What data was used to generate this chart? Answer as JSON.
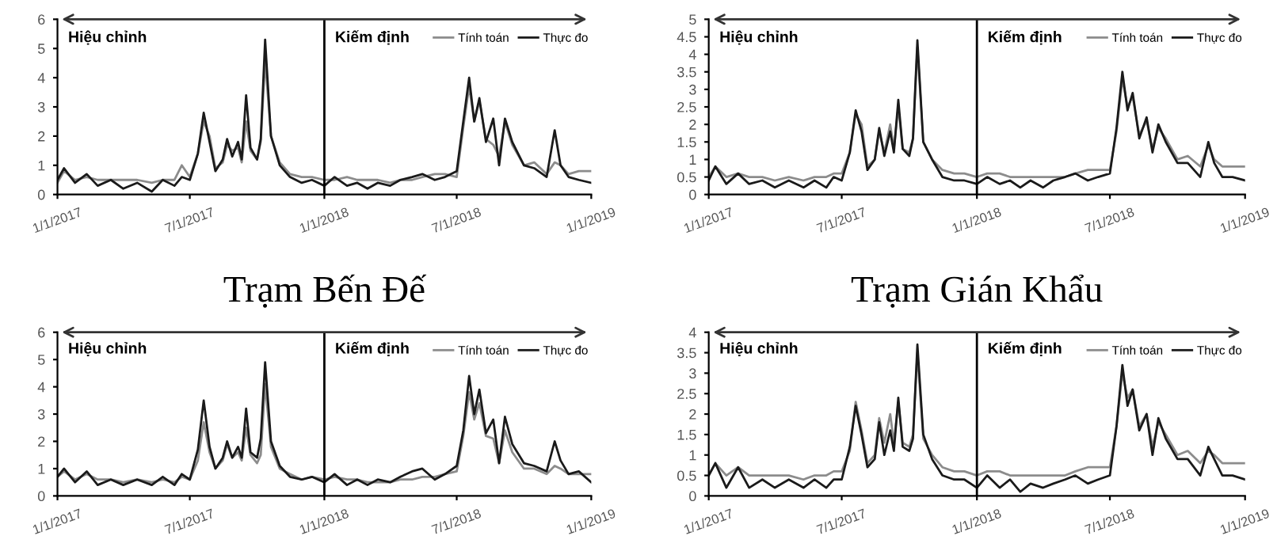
{
  "chart_data": [
    {
      "type": "line",
      "title": "Trạm Bến Đế",
      "annotations": [
        "Hiệu chỉnh",
        "Kiếm định"
      ],
      "legend": "top right",
      "x": [
        "2017-01-01",
        "2017-01-10",
        "2017-01-25",
        "2017-02-10",
        "2017-02-25",
        "2017-03-15",
        "2017-04-01",
        "2017-04-20",
        "2017-05-10",
        "2017-05-25",
        "2017-06-10",
        "2017-06-20",
        "2017-07-01",
        "2017-07-12",
        "2017-07-20",
        "2017-07-28",
        "2017-08-05",
        "2017-08-15",
        "2017-08-21",
        "2017-08-28",
        "2017-09-05",
        "2017-09-10",
        "2017-09-16",
        "2017-09-22",
        "2017-10-01",
        "2017-10-06",
        "2017-10-12",
        "2017-10-20",
        "2017-11-01",
        "2017-11-15",
        "2017-12-01",
        "2017-12-15",
        "2018-01-01",
        "2018-01-15",
        "2018-02-01",
        "2018-02-15",
        "2018-03-01",
        "2018-03-15",
        "2018-04-01",
        "2018-04-15",
        "2018-05-01",
        "2018-05-15",
        "2018-06-01",
        "2018-06-15",
        "2018-07-01",
        "2018-07-10",
        "2018-07-18",
        "2018-07-25",
        "2018-08-01",
        "2018-08-10",
        "2018-08-20",
        "2018-08-28",
        "2018-09-05",
        "2018-09-15",
        "2018-10-01",
        "2018-10-15",
        "2018-11-01",
        "2018-11-12",
        "2018-11-20",
        "2018-12-01",
        "2018-12-15",
        "2019-01-01"
      ],
      "series": [
        {
          "name": "Tính toán",
          "color": "#8c8c8c",
          "values": [
            0.4,
            0.8,
            0.5,
            0.6,
            0.5,
            0.5,
            0.5,
            0.5,
            0.4,
            0.5,
            0.5,
            1.0,
            0.6,
            1.4,
            2.5,
            2.0,
            0.9,
            1.1,
            1.7,
            1.5,
            1.6,
            1.1,
            2.5,
            1.5,
            1.2,
            1.8,
            4.6,
            2.0,
            1.1,
            0.7,
            0.6,
            0.6,
            0.5,
            0.5,
            0.6,
            0.5,
            0.5,
            0.5,
            0.4,
            0.5,
            0.5,
            0.6,
            0.7,
            0.7,
            0.6,
            2.3,
            3.7,
            2.5,
            3.2,
            1.9,
            1.7,
            1.3,
            2.5,
            1.7,
            1.0,
            1.1,
            0.7,
            1.1,
            1.0,
            0.7,
            0.8,
            0.8
          ]
        },
        {
          "name": "Thực đo",
          "color": "#1a1a1a",
          "values": [
            0.5,
            0.9,
            0.4,
            0.7,
            0.3,
            0.5,
            0.2,
            0.4,
            0.1,
            0.5,
            0.3,
            0.6,
            0.5,
            1.4,
            2.8,
            1.8,
            0.8,
            1.2,
            1.9,
            1.3,
            1.8,
            1.2,
            3.4,
            1.6,
            1.2,
            1.9,
            5.3,
            2.0,
            1.0,
            0.6,
            0.4,
            0.5,
            0.3,
            0.6,
            0.3,
            0.4,
            0.2,
            0.4,
            0.3,
            0.5,
            0.6,
            0.7,
            0.5,
            0.6,
            0.8,
            2.5,
            4.0,
            2.5,
            3.3,
            1.8,
            2.6,
            1.0,
            2.6,
            1.8,
            1.0,
            0.9,
            0.6,
            2.2,
            1.0,
            0.6,
            0.5,
            0.4
          ]
        }
      ],
      "xlim": [
        "2017-01-01",
        "2019-01-01"
      ],
      "ylim": [
        0,
        6
      ],
      "yticks": [
        0,
        1,
        2,
        3,
        4,
        5,
        6
      ],
      "xticks": [
        {
          "value": "2017-01-01",
          "label": "1/1/2017"
        },
        {
          "value": "2017-07-01",
          "label": "7/1/2017"
        },
        {
          "value": "2018-01-01",
          "label": "1/1/2018"
        },
        {
          "value": "2018-07-01",
          "label": "7/1/2018"
        },
        {
          "value": "2019-01-01",
          "label": "1/1/2019"
        }
      ],
      "ref_lines": [
        {
          "axis": "x",
          "value": "2018-01-01",
          "color": "#000000"
        }
      ]
    },
    {
      "type": "line",
      "title": "Trạm Gián Khẩu",
      "annotations": [
        "Hiệu chỉnh",
        "Kiếm định"
      ],
      "legend": "top right",
      "x": [
        "2017-01-01",
        "2017-01-10",
        "2017-01-25",
        "2017-02-10",
        "2017-02-25",
        "2017-03-15",
        "2017-04-01",
        "2017-04-20",
        "2017-05-10",
        "2017-05-25",
        "2017-06-10",
        "2017-06-20",
        "2017-07-01",
        "2017-07-12",
        "2017-07-20",
        "2017-07-28",
        "2017-08-05",
        "2017-08-15",
        "2017-08-21",
        "2017-08-28",
        "2017-09-05",
        "2017-09-10",
        "2017-09-16",
        "2017-09-22",
        "2017-10-01",
        "2017-10-06",
        "2017-10-12",
        "2017-10-20",
        "2017-11-01",
        "2017-11-15",
        "2017-12-01",
        "2017-12-15",
        "2018-01-01",
        "2018-01-15",
        "2018-02-01",
        "2018-02-15",
        "2018-03-01",
        "2018-03-15",
        "2018-04-01",
        "2018-04-15",
        "2018-05-01",
        "2018-05-15",
        "2018-06-01",
        "2018-06-15",
        "2018-07-01",
        "2018-07-10",
        "2018-07-18",
        "2018-07-25",
        "2018-08-01",
        "2018-08-10",
        "2018-08-20",
        "2018-08-28",
        "2018-09-05",
        "2018-09-15",
        "2018-10-01",
        "2018-10-15",
        "2018-11-01",
        "2018-11-12",
        "2018-11-20",
        "2018-12-01",
        "2018-12-15",
        "2019-01-01"
      ],
      "series": [
        {
          "name": "Tính toán",
          "color": "#8c8c8c",
          "values": [
            0.5,
            0.8,
            0.5,
            0.6,
            0.5,
            0.5,
            0.4,
            0.5,
            0.4,
            0.5,
            0.5,
            0.6,
            0.6,
            1.2,
            2.3,
            2.0,
            0.8,
            1.0,
            1.8,
            1.2,
            2.0,
            1.3,
            2.5,
            1.3,
            1.2,
            1.6,
            4.2,
            1.5,
            1.0,
            0.7,
            0.6,
            0.6,
            0.5,
            0.6,
            0.6,
            0.5,
            0.5,
            0.5,
            0.5,
            0.5,
            0.5,
            0.6,
            0.7,
            0.7,
            0.7,
            1.8,
            3.3,
            2.5,
            2.8,
            1.7,
            2.1,
            1.3,
            1.9,
            1.6,
            1.0,
            1.1,
            0.8,
            1.4,
            1.0,
            0.8,
            0.8,
            0.8
          ]
        },
        {
          "name": "Thực đo",
          "color": "#1a1a1a",
          "values": [
            0.4,
            0.8,
            0.3,
            0.6,
            0.3,
            0.4,
            0.2,
            0.4,
            0.2,
            0.4,
            0.2,
            0.5,
            0.4,
            1.2,
            2.4,
            1.8,
            0.7,
            1.0,
            1.9,
            1.1,
            1.8,
            1.2,
            2.7,
            1.3,
            1.1,
            1.6,
            4.4,
            1.5,
            1.0,
            0.5,
            0.4,
            0.4,
            0.3,
            0.5,
            0.3,
            0.4,
            0.2,
            0.4,
            0.2,
            0.4,
            0.5,
            0.6,
            0.4,
            0.5,
            0.6,
            1.9,
            3.5,
            2.4,
            2.9,
            1.6,
            2.2,
            1.2,
            2.0,
            1.5,
            0.9,
            0.9,
            0.5,
            1.5,
            0.9,
            0.5,
            0.5,
            0.4
          ]
        }
      ],
      "xlim": [
        "2017-01-01",
        "2019-01-01"
      ],
      "ylim": [
        0,
        5
      ],
      "yticks": [
        0,
        0.5,
        1,
        1.5,
        2,
        2.5,
        3,
        3.5,
        4,
        4.5,
        5
      ],
      "xticks": [
        {
          "value": "2017-01-01",
          "label": "1/1/2017"
        },
        {
          "value": "2017-07-01",
          "label": "7/1/2017"
        },
        {
          "value": "2018-01-01",
          "label": "1/1/2018"
        },
        {
          "value": "2018-07-01",
          "label": "7/1/2018"
        },
        {
          "value": "2019-01-01",
          "label": "1/1/2019"
        }
      ],
      "ref_lines": [
        {
          "axis": "x",
          "value": "2018-01-01",
          "color": "#000000"
        }
      ]
    },
    {
      "type": "line",
      "annotations": [
        "Hiệu chỉnh",
        "Kiếm định"
      ],
      "legend": "top right",
      "x": [
        "2017-01-01",
        "2017-01-10",
        "2017-01-25",
        "2017-02-10",
        "2017-02-25",
        "2017-03-15",
        "2017-04-01",
        "2017-04-20",
        "2017-05-10",
        "2017-05-25",
        "2017-06-10",
        "2017-06-20",
        "2017-07-01",
        "2017-07-12",
        "2017-07-20",
        "2017-07-28",
        "2017-08-05",
        "2017-08-15",
        "2017-08-21",
        "2017-08-28",
        "2017-09-05",
        "2017-09-10",
        "2017-09-16",
        "2017-09-22",
        "2017-10-01",
        "2017-10-06",
        "2017-10-12",
        "2017-10-20",
        "2017-11-01",
        "2017-11-15",
        "2017-12-01",
        "2017-12-15",
        "2018-01-01",
        "2018-01-15",
        "2018-02-01",
        "2018-02-15",
        "2018-03-01",
        "2018-03-15",
        "2018-04-01",
        "2018-04-15",
        "2018-05-01",
        "2018-05-15",
        "2018-06-01",
        "2018-06-15",
        "2018-07-01",
        "2018-07-10",
        "2018-07-18",
        "2018-07-25",
        "2018-08-01",
        "2018-08-10",
        "2018-08-20",
        "2018-08-28",
        "2018-09-05",
        "2018-09-15",
        "2018-10-01",
        "2018-10-15",
        "2018-11-01",
        "2018-11-12",
        "2018-11-20",
        "2018-12-01",
        "2018-12-15",
        "2019-01-01"
      ],
      "series": [
        {
          "name": "Tính toán",
          "color": "#8c8c8c",
          "values": [
            0.7,
            0.9,
            0.6,
            0.8,
            0.6,
            0.6,
            0.5,
            0.6,
            0.5,
            0.6,
            0.5,
            0.7,
            0.6,
            1.3,
            2.7,
            1.6,
            1.0,
            1.3,
            1.9,
            1.4,
            1.6,
            1.3,
            2.5,
            1.5,
            1.2,
            1.5,
            4.1,
            1.8,
            1.0,
            0.8,
            0.6,
            0.7,
            0.6,
            0.7,
            0.6,
            0.6,
            0.5,
            0.5,
            0.5,
            0.6,
            0.6,
            0.7,
            0.7,
            0.8,
            0.9,
            2.2,
            3.8,
            2.8,
            3.4,
            2.2,
            2.1,
            1.2,
            2.4,
            1.6,
            1.0,
            1.0,
            0.8,
            1.1,
            1.0,
            0.8,
            0.8,
            0.8
          ]
        },
        {
          "name": "Thực đo",
          "color": "#1a1a1a",
          "values": [
            0.7,
            1.0,
            0.5,
            0.9,
            0.4,
            0.6,
            0.4,
            0.6,
            0.4,
            0.7,
            0.4,
            0.8,
            0.6,
            1.7,
            3.5,
            1.8,
            1.0,
            1.4,
            2.0,
            1.4,
            1.8,
            1.4,
            3.2,
            1.6,
            1.4,
            2.1,
            4.9,
            2.0,
            1.1,
            0.7,
            0.6,
            0.7,
            0.5,
            0.8,
            0.4,
            0.6,
            0.4,
            0.6,
            0.5,
            0.7,
            0.9,
            1.0,
            0.6,
            0.8,
            1.1,
            2.4,
            4.4,
            3.0,
            3.9,
            2.3,
            2.8,
            1.2,
            2.9,
            1.9,
            1.2,
            1.1,
            0.9,
            2.0,
            1.3,
            0.8,
            0.9,
            0.5
          ]
        }
      ],
      "xlim": [
        "2017-01-01",
        "2019-01-01"
      ],
      "ylim": [
        0,
        6
      ],
      "yticks": [
        0,
        1,
        2,
        3,
        4,
        5,
        6
      ],
      "xticks": [
        {
          "value": "2017-01-01",
          "label": "1/1/2017"
        },
        {
          "value": "2017-07-01",
          "label": "7/1/2017"
        },
        {
          "value": "2018-01-01",
          "label": "1/1/2018"
        },
        {
          "value": "2018-07-01",
          "label": "7/1/2018"
        },
        {
          "value": "2019-01-01",
          "label": "1/1/2019"
        }
      ],
      "ref_lines": [
        {
          "axis": "x",
          "value": "2018-01-01",
          "color": "#000000"
        }
      ]
    },
    {
      "type": "line",
      "annotations": [
        "Hiệu chỉnh",
        "Kiếm định"
      ],
      "legend": "top right",
      "x": [
        "2017-01-01",
        "2017-01-10",
        "2017-01-25",
        "2017-02-10",
        "2017-02-25",
        "2017-03-15",
        "2017-04-01",
        "2017-04-20",
        "2017-05-10",
        "2017-05-25",
        "2017-06-10",
        "2017-06-20",
        "2017-07-01",
        "2017-07-12",
        "2017-07-20",
        "2017-07-28",
        "2017-08-05",
        "2017-08-15",
        "2017-08-21",
        "2017-08-28",
        "2017-09-05",
        "2017-09-10",
        "2017-09-16",
        "2017-09-22",
        "2017-10-01",
        "2017-10-06",
        "2017-10-12",
        "2017-10-20",
        "2017-11-01",
        "2017-11-15",
        "2017-12-01",
        "2017-12-15",
        "2018-01-01",
        "2018-01-15",
        "2018-02-01",
        "2018-02-15",
        "2018-03-01",
        "2018-03-15",
        "2018-04-01",
        "2018-04-15",
        "2018-05-01",
        "2018-05-15",
        "2018-06-01",
        "2018-06-15",
        "2018-07-01",
        "2018-07-10",
        "2018-07-18",
        "2018-07-25",
        "2018-08-01",
        "2018-08-10",
        "2018-08-20",
        "2018-08-28",
        "2018-09-05",
        "2018-09-15",
        "2018-10-01",
        "2018-10-15",
        "2018-11-01",
        "2018-11-12",
        "2018-11-20",
        "2018-12-01",
        "2018-12-15",
        "2019-01-01"
      ],
      "series": [
        {
          "name": "Tính toán",
          "color": "#8c8c8c",
          "values": [
            0.5,
            0.8,
            0.5,
            0.7,
            0.5,
            0.5,
            0.5,
            0.5,
            0.4,
            0.5,
            0.5,
            0.6,
            0.6,
            1.1,
            2.3,
            1.6,
            0.8,
            1.0,
            1.9,
            1.3,
            2.0,
            1.3,
            2.3,
            1.3,
            1.2,
            1.5,
            3.5,
            1.4,
            1.0,
            0.7,
            0.6,
            0.6,
            0.5,
            0.6,
            0.6,
            0.5,
            0.5,
            0.5,
            0.5,
            0.5,
            0.5,
            0.6,
            0.7,
            0.7,
            0.7,
            1.7,
            3.0,
            2.4,
            2.6,
            1.7,
            2.0,
            1.2,
            1.8,
            1.5,
            1.0,
            1.1,
            0.8,
            1.1,
            1.0,
            0.8,
            0.8,
            0.8
          ]
        },
        {
          "name": "Thực đo",
          "color": "#1a1a1a",
          "values": [
            0.5,
            0.8,
            0.2,
            0.7,
            0.2,
            0.4,
            0.2,
            0.4,
            0.2,
            0.4,
            0.2,
            0.4,
            0.4,
            1.2,
            2.2,
            1.5,
            0.7,
            0.9,
            1.8,
            1.0,
            1.6,
            1.1,
            2.4,
            1.2,
            1.1,
            1.4,
            3.7,
            1.5,
            0.9,
            0.5,
            0.4,
            0.4,
            0.2,
            0.5,
            0.2,
            0.4,
            0.1,
            0.3,
            0.2,
            0.3,
            0.4,
            0.5,
            0.3,
            0.4,
            0.5,
            1.7,
            3.2,
            2.2,
            2.6,
            1.6,
            2.0,
            1.0,
            1.9,
            1.4,
            0.9,
            0.9,
            0.5,
            1.2,
            0.9,
            0.5,
            0.5,
            0.4
          ]
        }
      ],
      "xlim": [
        "2017-01-01",
        "2019-01-01"
      ],
      "ylim": [
        0,
        4
      ],
      "yticks": [
        0,
        0.5,
        1,
        1.5,
        2,
        2.5,
        3,
        3.5,
        4
      ],
      "xticks": [
        {
          "value": "2017-01-01",
          "label": "1/1/2017"
        },
        {
          "value": "2017-07-01",
          "label": "7/1/2017"
        },
        {
          "value": "2018-01-01",
          "label": "1/1/2018"
        },
        {
          "value": "2018-07-01",
          "label": "7/1/2018"
        },
        {
          "value": "2019-01-01",
          "label": "1/1/2019"
        }
      ],
      "ref_lines": [
        {
          "axis": "x",
          "value": "2018-01-01",
          "color": "#000000"
        }
      ]
    }
  ]
}
